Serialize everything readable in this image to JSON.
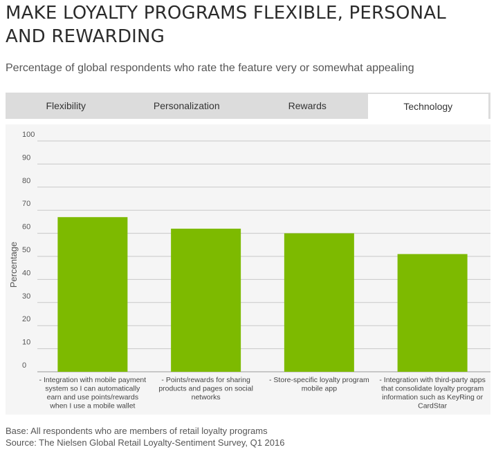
{
  "title": "MAKE LOYALTY PROGRAMS FLEXIBLE, PERSONAL AND REWARDING",
  "subtitle": "Percentage of global respondents who rate the feature very or somewhat appealing",
  "tabs": [
    {
      "label": "Flexibility",
      "active": false
    },
    {
      "label": "Personalization",
      "active": false
    },
    {
      "label": "Rewards",
      "active": false
    },
    {
      "label": "Technology",
      "active": true
    }
  ],
  "colors": {
    "bar": "#7dba00",
    "grid": "#c8c8c8",
    "plot_bg": "#f5f5f5",
    "tabs_bg": "#dcdcdc"
  },
  "chart_data": {
    "type": "bar",
    "ylabel": "Percentage",
    "ylim": [
      0,
      100
    ],
    "yticks": [
      0,
      10,
      20,
      30,
      40,
      50,
      60,
      70,
      80,
      90,
      100
    ],
    "grid": true,
    "categories": [
      [
        "- Integration with mobile payment",
        "system so I can automatically",
        "earn and use points/rewards",
        "when I use a mobile wallet"
      ],
      [
        "- Points/rewards for sharing",
        "products and pages on social",
        "networks"
      ],
      [
        "- Store-specific loyalty program",
        "mobile app"
      ],
      [
        "- Integration with third-party apps",
        "that consolidate loyalty program",
        "information such as KeyRing or",
        "CardStar"
      ]
    ],
    "values": [
      67,
      62,
      60,
      51
    ]
  },
  "footer": {
    "base": "Base: All respondents who are members of retail loyalty programs",
    "source": "Source: The Nielsen Global Retail Loyalty-Sentiment Survey, Q1 2016"
  }
}
